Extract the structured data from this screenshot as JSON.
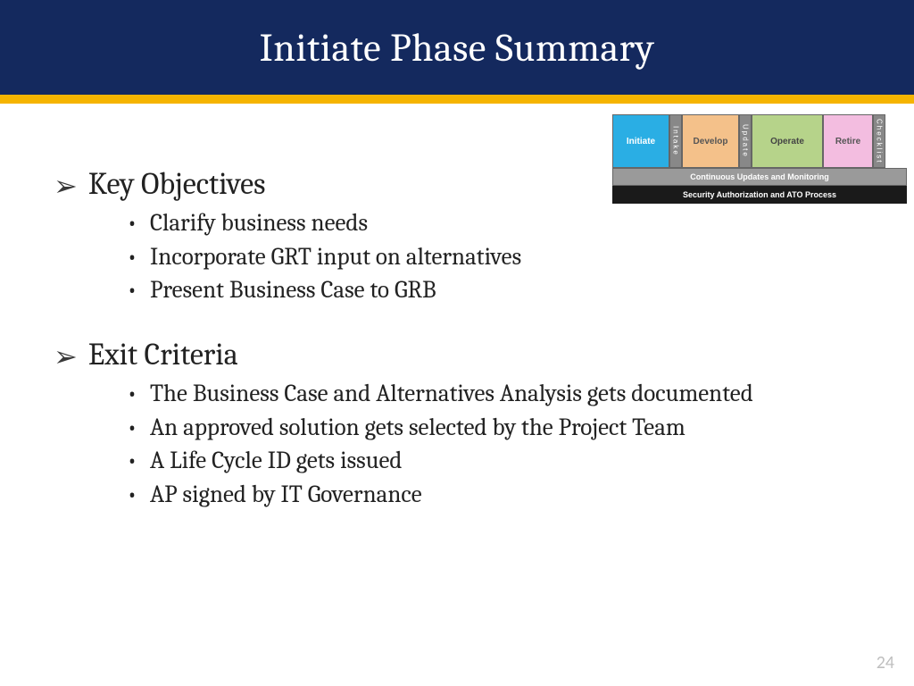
{
  "header": {
    "title": "Initiate Phase Summary",
    "bg_color": "#14295e",
    "stripe_color": "#f5b400",
    "title_color": "#ffffff",
    "title_fontsize": 44
  },
  "sections": [
    {
      "title": "Key Objectives",
      "bullets": [
        "Clarify business needs",
        "Incorporate GRT input on alternatives",
        "Present Business Case to GRB"
      ]
    },
    {
      "title": "Exit Criteria",
      "bullets": [
        "The Business Case and Alternatives Analysis gets documented",
        "An approved solution gets selected by the Project Team",
        "A Life Cycle ID gets issued",
        "AP signed by IT Governance"
      ]
    }
  ],
  "diagram": {
    "phases": [
      {
        "label": "Initiate",
        "color": "#2aaee4"
      },
      {
        "label": "Develop",
        "color": "#f4c18a"
      },
      {
        "label": "Operate",
        "color": "#b6d38a"
      },
      {
        "label": "Retire",
        "color": "#f3bde0"
      }
    ],
    "vlabels": [
      "Intake",
      "Update",
      "Checklist"
    ],
    "row2": "Continuous Updates and Monitoring",
    "row3": "Security Authorization and ATO Process"
  },
  "page_number": "24",
  "body_fontsize": 27,
  "heading_fontsize": 34,
  "text_color": "#222222",
  "page_num_color": "#bfbfbf",
  "background_color": "#ffffff"
}
